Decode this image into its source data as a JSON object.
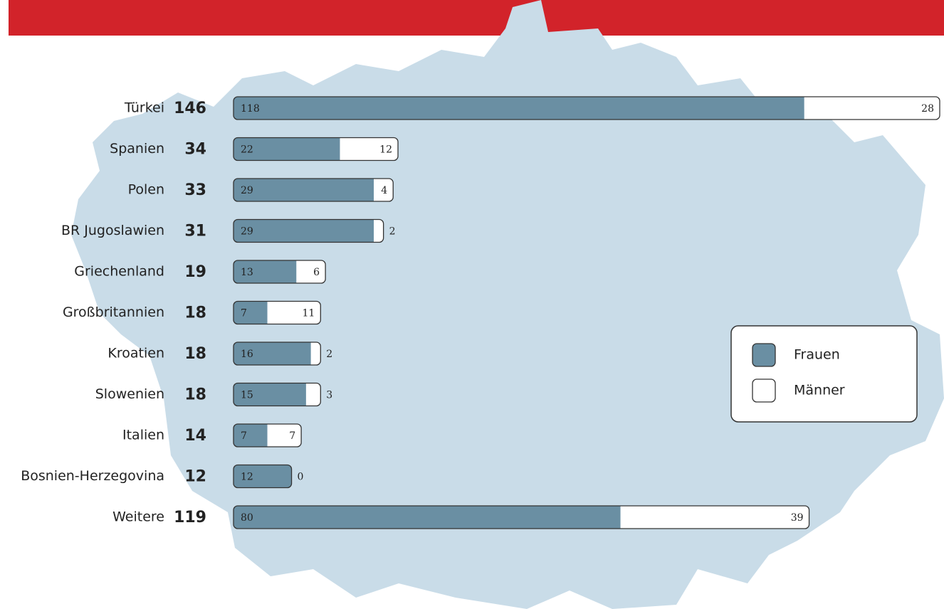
{
  "chart_data": {
    "type": "stacked-bar",
    "categories": [
      "Türkei",
      "Spanien",
      "Polen",
      "BR Jugoslawien",
      "Griechenland",
      "Großbritannien",
      "Kroatien",
      "Slowenien",
      "Italien",
      "Bosnien-Herzegovina",
      "Weitere"
    ],
    "totals": [
      146,
      34,
      33,
      31,
      19,
      18,
      18,
      18,
      14,
      12,
      119
    ],
    "series": [
      {
        "name": "Frauen",
        "color": "#6a8fa3",
        "values": [
          118,
          22,
          29,
          29,
          13,
          7,
          16,
          15,
          7,
          12,
          80
        ]
      },
      {
        "name": "Männer",
        "color": "#ffffff",
        "values": [
          28,
          12,
          4,
          2,
          6,
          11,
          2,
          3,
          7,
          0,
          39
        ]
      }
    ],
    "legend": "right"
  }
}
